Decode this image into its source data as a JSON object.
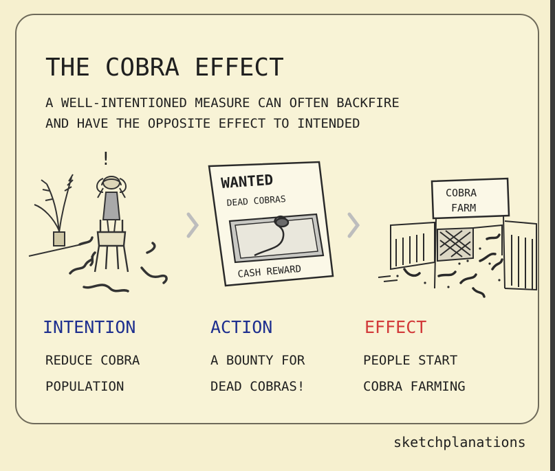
{
  "header": {
    "title": "THE COBRA EFFECT",
    "subtitle_lines": [
      "A WELL-INTENTIONED MEASURE CAN OFTEN BACKFIRE",
      "AND HAVE THE OPPOSITE EFFECT TO INTENDED"
    ]
  },
  "poster": {
    "heading": "WANTED",
    "subheading": "DEAD COBRAS",
    "footer": "CASH REWARD"
  },
  "farm_sign": {
    "line1": "COBRA",
    "line2": "FARM"
  },
  "columns": [
    {
      "label": "INTENTION",
      "label_color": "#1e2f8f",
      "lines": [
        "REDUCE COBRA",
        "POPULATION"
      ]
    },
    {
      "label": "ACTION",
      "label_color": "#1e2f8f",
      "lines": [
        "A BOUNTY FOR",
        "DEAD COBRAS!"
      ]
    },
    {
      "label": "EFFECT",
      "label_color": "#d23a3a",
      "lines": [
        "PEOPLE START",
        "COBRA FARMING"
      ]
    }
  ],
  "brand": "sketchplanations",
  "exclamation": "!"
}
